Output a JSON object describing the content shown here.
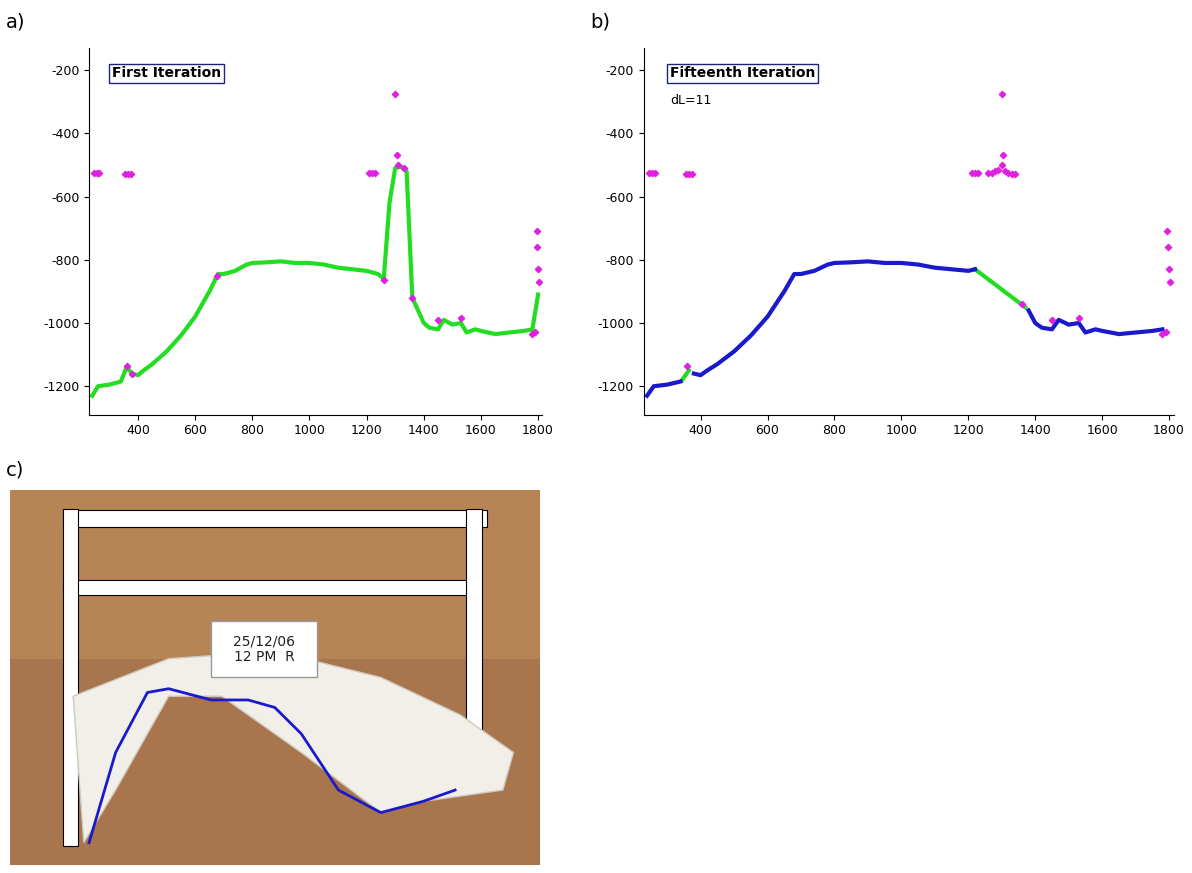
{
  "chart_data": [
    {
      "type": "line",
      "panel_label": "a)",
      "title": "First Iteration",
      "xlim": [
        230,
        1815
      ],
      "ylim": [
        -1290,
        -130
      ],
      "xticks": [
        400,
        600,
        800,
        1000,
        1200,
        1400,
        1600,
        1800
      ],
      "yticks": [
        -1200,
        -1000,
        -800,
        -600,
        -400,
        -200
      ],
      "series": [
        {
          "type": "scatter",
          "color": "#e020e0",
          "marker": "diamond",
          "x": [
            245,
            255,
            265,
            355,
            365,
            375,
            1210,
            1220,
            1230,
            1300,
            1305,
            1795,
            1797,
            1800,
            1802,
            1790,
            1780,
            360,
            380,
            1260,
            1360,
            1450,
            1530,
            675,
            1310,
            1330
          ],
          "values": [
            -525,
            -525,
            -525,
            -530,
            -530,
            -530,
            -525,
            -525,
            -525,
            -275,
            -470,
            -710,
            -760,
            -830,
            -870,
            -1030,
            -1035,
            -1135,
            -1160,
            -865,
            -920,
            -990,
            -985,
            -850,
            -500,
            -510
          ]
        },
        {
          "type": "line",
          "color": "#22dd22",
          "x": [
            240,
            260,
            300,
            340,
            360,
            380,
            400,
            420,
            450,
            500,
            550,
            600,
            650,
            680,
            700,
            740,
            780,
            800,
            850,
            900,
            950,
            1000,
            1050,
            1100,
            1150,
            1200,
            1240,
            1260,
            1280,
            1300,
            1320,
            1340,
            1360,
            1380,
            1400,
            1420,
            1450,
            1470,
            1500,
            1530,
            1550,
            1580,
            1600,
            1650,
            1700,
            1750,
            1780,
            1800
          ],
          "values": [
            -1230,
            -1200,
            -1195,
            -1185,
            -1140,
            -1160,
            -1165,
            -1150,
            -1130,
            -1090,
            -1040,
            -980,
            -900,
            -845,
            -845,
            -835,
            -815,
            -810,
            -808,
            -805,
            -810,
            -810,
            -815,
            -825,
            -830,
            -835,
            -845,
            -860,
            -620,
            -510,
            -505,
            -520,
            -920,
            -960,
            -1000,
            -1015,
            -1020,
            -990,
            -1005,
            -1000,
            -1030,
            -1020,
            -1025,
            -1035,
            -1030,
            -1025,
            -1020,
            -910
          ]
        }
      ]
    },
    {
      "type": "line",
      "panel_label": "b)",
      "title": "Fifteenth Iteration",
      "subtitle": "dL=11",
      "xlim": [
        230,
        1815
      ],
      "ylim": [
        -1290,
        -130
      ],
      "xticks": [
        400,
        600,
        800,
        1000,
        1200,
        1400,
        1600,
        1800
      ],
      "yticks": [
        -1200,
        -1000,
        -800,
        -600,
        -400,
        -200
      ],
      "series": [
        {
          "type": "scatter",
          "color": "#e020e0",
          "marker": "diamond",
          "x": [
            245,
            255,
            265,
            355,
            365,
            375,
            1210,
            1220,
            1230,
            1260,
            1270,
            1280,
            1290,
            1300,
            1310,
            1320,
            1330,
            1340,
            1300,
            1305,
            1795,
            1797,
            1800,
            1802,
            1790,
            1780,
            360,
            1360,
            1450,
            1530
          ],
          "values": [
            -525,
            -525,
            -525,
            -530,
            -530,
            -530,
            -525,
            -525,
            -525,
            -525,
            -525,
            -520,
            -515,
            -500,
            -520,
            -525,
            -530,
            -530,
            -275,
            -470,
            -710,
            -760,
            -830,
            -870,
            -1030,
            -1035,
            -1135,
            -940,
            -990,
            -985
          ]
        },
        {
          "type": "line",
          "color": "#22dd22",
          "x": [
            1220,
            1370,
            null,
            345,
            365
          ],
          "values": [
            -830,
            -950,
            null,
            -1180,
            -1150
          ]
        },
        {
          "type": "line",
          "color": "#1a1acc",
          "x": [
            240,
            260,
            300,
            340,
            360,
            370,
            380,
            400,
            420,
            450,
            500,
            550,
            600,
            650,
            680,
            700,
            740,
            780,
            800,
            850,
            900,
            950,
            1000,
            1050,
            1100,
            1150,
            1200,
            1220,
            1370,
            null,
            1380,
            1400,
            1420,
            1450,
            1470,
            1500,
            1530,
            1550,
            1580,
            1600,
            1650,
            1700,
            1750,
            1780
          ],
          "values": [
            -1230,
            -1200,
            -1195,
            -1185,
            null,
            null,
            -1160,
            -1165,
            -1150,
            -1130,
            -1090,
            -1040,
            -980,
            -900,
            -845,
            -845,
            -835,
            -815,
            -810,
            -808,
            -805,
            -810,
            -810,
            -815,
            -825,
            -830,
            -835,
            -830,
            null,
            null,
            -960,
            -1000,
            -1015,
            -1020,
            -990,
            -1005,
            -1000,
            -1030,
            -1020,
            -1025,
            -1035,
            -1030,
            -1025,
            -1020
          ]
        }
      ]
    }
  ],
  "photo": {
    "panel_label": "c)",
    "card_text": [
      "25/12/06",
      "12 PM  R"
    ],
    "profile_color": "#1a1acc"
  }
}
